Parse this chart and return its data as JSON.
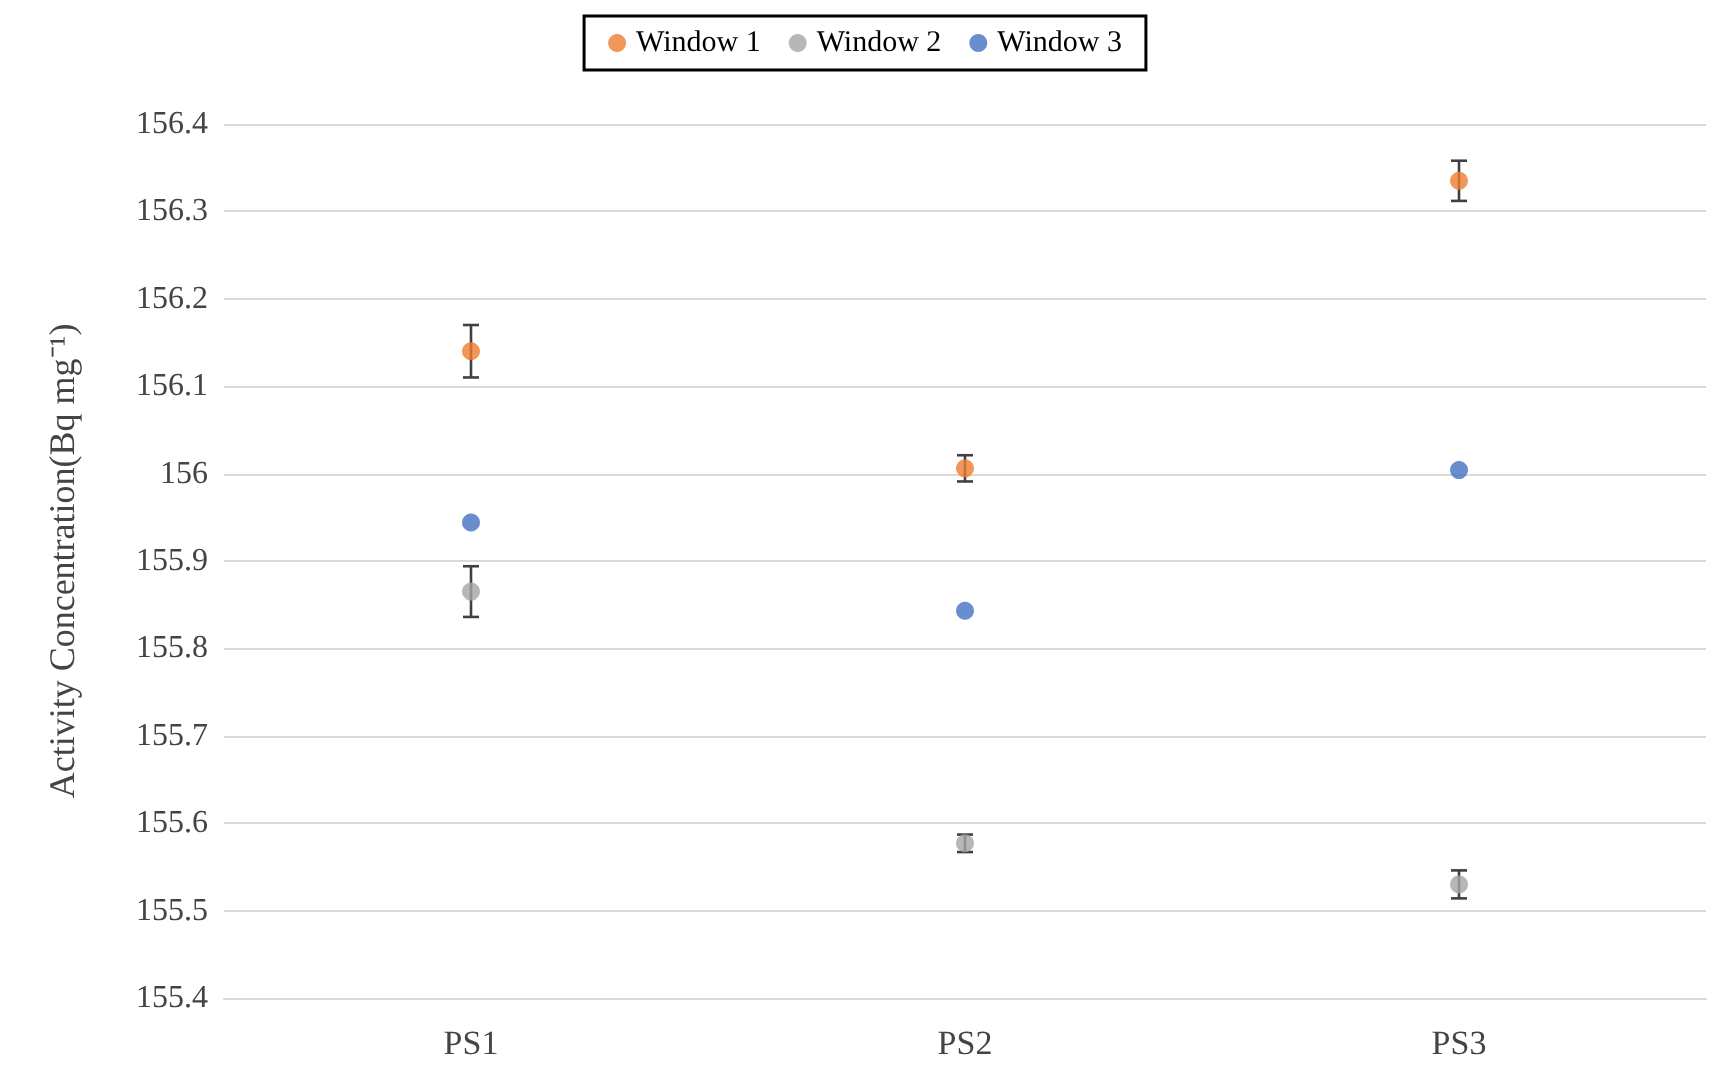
{
  "chart_data": {
    "type": "scatter",
    "ylabel": "Activity Concentration(Bq mg⁻¹)",
    "categories": [
      "PS1",
      "PS2",
      "PS3"
    ],
    "series": [
      {
        "name": "Window 1",
        "color": "#ed7d31",
        "values": [
          156.14,
          156.006,
          156.335
        ],
        "errors": [
          0.03,
          0.015,
          0.023
        ]
      },
      {
        "name": "Window 2",
        "color": "#a5a5a5",
        "values": [
          155.865,
          155.577,
          155.53
        ],
        "errors": [
          0.029,
          0.01,
          0.016
        ]
      },
      {
        "name": "Window 3",
        "color": "#4472c4",
        "values": [
          155.944,
          155.843,
          156.004
        ]
      }
    ],
    "ylim": [
      155.4,
      156.4
    ],
    "yticks": [
      155.4,
      155.5,
      155.6,
      155.7,
      155.8,
      155.9,
      156,
      156.1,
      156.2,
      156.3,
      156.4
    ],
    "grid": "y",
    "legend": "top",
    "marker": "circle"
  }
}
